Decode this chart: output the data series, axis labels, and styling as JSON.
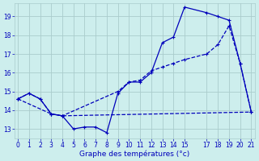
{
  "xlabel": "Graphe des températures (°c)",
  "bg_color": "#cdeeed",
  "grid_color": "#aacccc",
  "line_color": "#0000bb",
  "series1": {
    "x": [
      0,
      1,
      2,
      3,
      4,
      5,
      6,
      7,
      8,
      9,
      10,
      11,
      12,
      13,
      14,
      15,
      17,
      18,
      19,
      20,
      21
    ],
    "y": [
      14.6,
      14.9,
      14.6,
      13.8,
      13.7,
      13.0,
      13.1,
      13.1,
      12.8,
      14.9,
      15.5,
      15.5,
      16.0,
      17.6,
      17.9,
      19.5,
      19.2,
      19.0,
      18.8,
      16.5,
      13.9
    ]
  },
  "series2": {
    "x": [
      0,
      3,
      4,
      21
    ],
    "y": [
      14.6,
      13.8,
      13.7,
      13.9
    ]
  },
  "series3": {
    "x": [
      0,
      1,
      2,
      3,
      4,
      9,
      10,
      11,
      12,
      13,
      14,
      15,
      17,
      18,
      19,
      20,
      21
    ],
    "y": [
      14.6,
      14.9,
      14.6,
      13.8,
      13.7,
      15.0,
      15.5,
      15.6,
      16.1,
      16.3,
      16.5,
      16.7,
      17.0,
      17.5,
      18.5,
      16.5,
      13.9
    ]
  },
  "ylim": [
    12.5,
    19.7
  ],
  "xlim": [
    -0.3,
    21.3
  ],
  "yticks": [
    13,
    14,
    15,
    16,
    17,
    18,
    19
  ],
  "xticks": [
    0,
    1,
    2,
    3,
    4,
    5,
    6,
    7,
    8,
    9,
    10,
    11,
    12,
    13,
    14,
    15,
    17,
    18,
    19,
    20,
    21
  ],
  "xticklabels": [
    "0",
    "1",
    "2",
    "3",
    "4",
    "5",
    "6",
    "7",
    "8",
    "9",
    "10",
    "11",
    "12",
    "13",
    "14",
    "15",
    "17",
    "18",
    "19",
    "20",
    "21"
  ]
}
